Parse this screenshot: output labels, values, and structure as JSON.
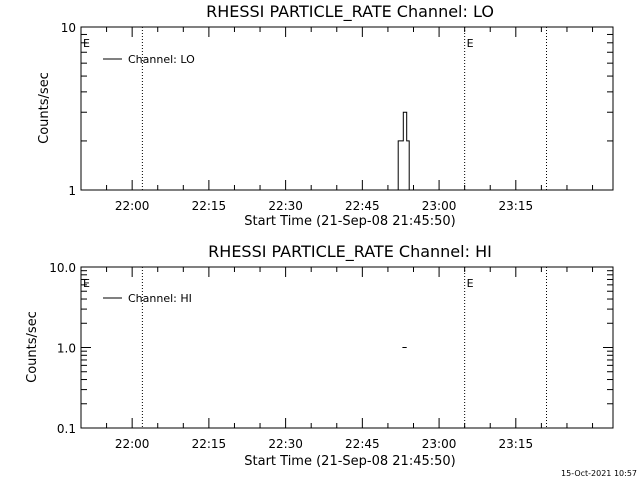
{
  "footer_timestamp": "15-Oct-2021 10:57",
  "colors": {
    "background": "#ffffff",
    "foreground": "#000000"
  },
  "chart_data": [
    {
      "type": "line",
      "title": "RHESSI PARTICLE_RATE Channel: LO",
      "xlabel": "Start Time (21-Sep-08 21:45:50)",
      "ylabel": "Counts/sec",
      "yscale": "log",
      "ylim": [
        1,
        10
      ],
      "yticks": [
        {
          "value": 1,
          "label": "1"
        },
        {
          "value": 10,
          "label": "10"
        }
      ],
      "xlim": [
        "21:50",
        "23:34"
      ],
      "xticks": [
        "22:00",
        "22:15",
        "22:30",
        "22:45",
        "23:00",
        "23:15"
      ],
      "grid": false,
      "legend": {
        "placement": "top-left",
        "entries": [
          "Channel: LO"
        ]
      },
      "vertical_markers": [
        {
          "x": "21:50",
          "label": "E",
          "style": "none"
        },
        {
          "x": "22:02",
          "label": "",
          "style": "dotted"
        },
        {
          "x": "23:05",
          "label": "E",
          "style": "dotted"
        },
        {
          "x": "23:21",
          "label": "",
          "style": "dotted"
        }
      ],
      "series": [
        {
          "name": "Channel: LO",
          "style": "step",
          "points": [
            {
              "x": "22:52:00",
              "y": 1
            },
            {
              "x": "22:52:00",
              "y": 2
            },
            {
              "x": "22:53:00",
              "y": 2
            },
            {
              "x": "22:53:00",
              "y": 3
            },
            {
              "x": "22:53:40",
              "y": 3
            },
            {
              "x": "22:53:40",
              "y": 2
            },
            {
              "x": "22:54:10",
              "y": 2
            },
            {
              "x": "22:54:10",
              "y": 1
            }
          ]
        }
      ]
    },
    {
      "type": "line",
      "title": "RHESSI PARTICLE_RATE Channel: HI",
      "xlabel": "Start Time (21-Sep-08 21:45:50)",
      "ylabel": "Counts/sec",
      "yscale": "log",
      "ylim": [
        0.1,
        10
      ],
      "yticks": [
        {
          "value": 0.1,
          "label": "0.1"
        },
        {
          "value": 1,
          "label": "1.0"
        },
        {
          "value": 10,
          "label": "10.0"
        }
      ],
      "xlim": [
        "21:50",
        "23:34"
      ],
      "xticks": [
        "22:00",
        "22:15",
        "22:30",
        "22:45",
        "23:00",
        "23:15"
      ],
      "grid": false,
      "legend": {
        "placement": "top-left",
        "entries": [
          "Channel: HI"
        ]
      },
      "vertical_markers": [
        {
          "x": "21:50",
          "label": "E",
          "style": "none"
        },
        {
          "x": "22:02",
          "label": "",
          "style": "dotted"
        },
        {
          "x": "23:05",
          "label": "E",
          "style": "dotted"
        },
        {
          "x": "23:21",
          "label": "",
          "style": "dotted"
        }
      ],
      "series": [
        {
          "name": "Channel: HI",
          "style": "step",
          "points": [
            {
              "x": "22:52:50",
              "y": 1
            },
            {
              "x": "22:53:40",
              "y": 1
            }
          ]
        }
      ]
    }
  ]
}
